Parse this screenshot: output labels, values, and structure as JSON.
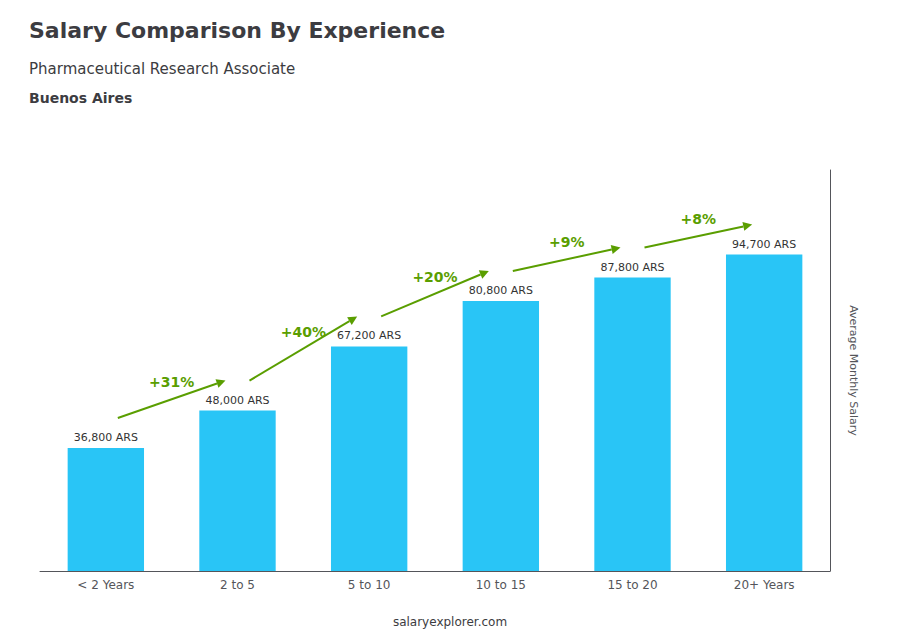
{
  "chart_data": {
    "type": "bar",
    "title": "Salary Comparison By Experience",
    "subtitle": "Pharmaceutical Research Associate",
    "city": "Buenos Aires",
    "ylabel": "Average Monthly Salary",
    "footer": "salaryexplorer.com",
    "categories": [
      "< 2 Years",
      "2 to 5",
      "5 to 10",
      "10 to 15",
      "15 to 20",
      "20+ Years"
    ],
    "values": [
      36800,
      48000,
      67200,
      80800,
      87800,
      94700
    ],
    "value_labels": [
      "36,800 ARS",
      "48,000 ARS",
      "67,200 ARS",
      "80,800 ARS",
      "87,800 ARS",
      "94,700 ARS"
    ],
    "data_labels": true,
    "color": "#29C5F6",
    "ylim": [
      0,
      120000
    ],
    "tick_labels": "x",
    "grid": false,
    "annotations": [
      "+31%",
      "+40%",
      "+20%",
      "+9%",
      "+8%"
    ]
  }
}
